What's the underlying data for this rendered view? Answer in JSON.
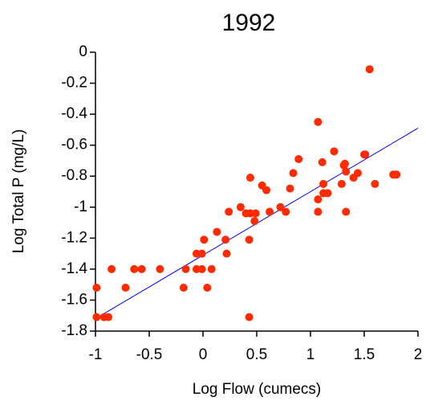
{
  "chart_data": {
    "type": "scatter",
    "title": "1992",
    "x_label": "Log Flow (cumecs)",
    "y_label": "Log Total P (mg/L)",
    "xlim": [
      -1,
      2
    ],
    "ylim": [
      -1.8,
      0
    ],
    "xticks": [
      -1,
      -0.5,
      0,
      0.5,
      1,
      1.5,
      2
    ],
    "yticks": [
      0,
      -0.2,
      -0.4,
      -0.6,
      -0.8,
      -1,
      -1.2,
      -1.4,
      -1.6,
      -1.8
    ],
    "series": [
      {
        "color": "#ff2a00",
        "x": [
          -0.99,
          -0.99,
          -0.92,
          -0.88,
          -0.85,
          -0.72,
          -0.64,
          -0.57,
          -0.4,
          -0.16,
          -0.18,
          -0.06,
          -0.06,
          -0.01,
          0.01,
          -0.01,
          0.04,
          0.08,
          0.13,
          0.21,
          0.22,
          0.24,
          0.35,
          0.4,
          0.43,
          0.43,
          0.44,
          0.44,
          0.48,
          0.49,
          0.55,
          0.59,
          0.62,
          0.72,
          0.77,
          0.81,
          0.84,
          0.89,
          1.07,
          1.07,
          1.07,
          1.11,
          1.12,
          1.12,
          1.16,
          1.22,
          1.29,
          1.31,
          1.32,
          1.33,
          1.33,
          1.4,
          1.44,
          1.5,
          1.51,
          1.55,
          1.6,
          1.77,
          1.8
        ],
        "y": [
          -1.52,
          -1.71,
          -1.71,
          -1.71,
          -1.4,
          -1.52,
          -1.4,
          -1.4,
          -1.4,
          -1.4,
          -1.52,
          -1.3,
          -1.4,
          -1.3,
          -1.21,
          -1.4,
          -1.52,
          -1.4,
          -1.16,
          -1.21,
          -1.3,
          -1.03,
          -1.0,
          -1.04,
          -1.71,
          -1.21,
          -1.04,
          -0.81,
          -1.09,
          -1.04,
          -0.86,
          -0.89,
          -1.03,
          -1.0,
          -1.03,
          -0.88,
          -0.78,
          -0.69,
          -0.45,
          -1.03,
          -0.95,
          -0.71,
          -0.91,
          -0.85,
          -0.91,
          -0.64,
          -0.85,
          -0.73,
          -0.72,
          -1.03,
          -0.77,
          -0.81,
          -0.78,
          -0.66,
          -0.66,
          -0.11,
          -0.85,
          -0.79,
          -0.79
        ]
      }
    ],
    "trend_line": {
      "color": "#0000ff",
      "x": [
        -1,
        2
      ],
      "y": [
        -1.72,
        -0.49
      ]
    }
  }
}
